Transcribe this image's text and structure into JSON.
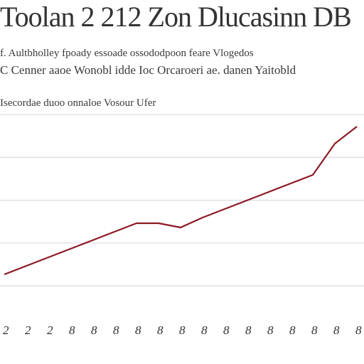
{
  "header": {
    "title": "Toolan 2 212 Zon Dlucasinn DB",
    "subtitle_line1": "f. Aultbholley fpoady essoade ossododpoon feare Vlogedos",
    "subtitle_line2": "C Cenner aaoe Wonobl idde Ioc Orcaroeri ae. danen Yaitobld",
    "subtitle_line3": "Isecordae duoo onnaloe Vosour Ufer"
  },
  "chart_data": {
    "type": "line",
    "title": "Toolan 2 212 Zon Dlucasinn DB",
    "xlabel": "",
    "ylabel": "",
    "x": [
      "2",
      "2",
      "2",
      "8",
      "8",
      "8",
      "8",
      "8",
      "8",
      "8",
      "8",
      "8",
      "8",
      "8",
      "8",
      "8",
      "8"
    ],
    "series": [
      {
        "values": [
          22,
          28,
          34,
          40,
          46,
          52,
          58,
          58,
          55,
          62,
          68,
          74,
          80,
          86,
          92,
          114,
          126
        ],
        "color": "#8b1a24"
      }
    ],
    "ylim": [
      0,
      140
    ],
    "grid": true,
    "legend": "none"
  }
}
